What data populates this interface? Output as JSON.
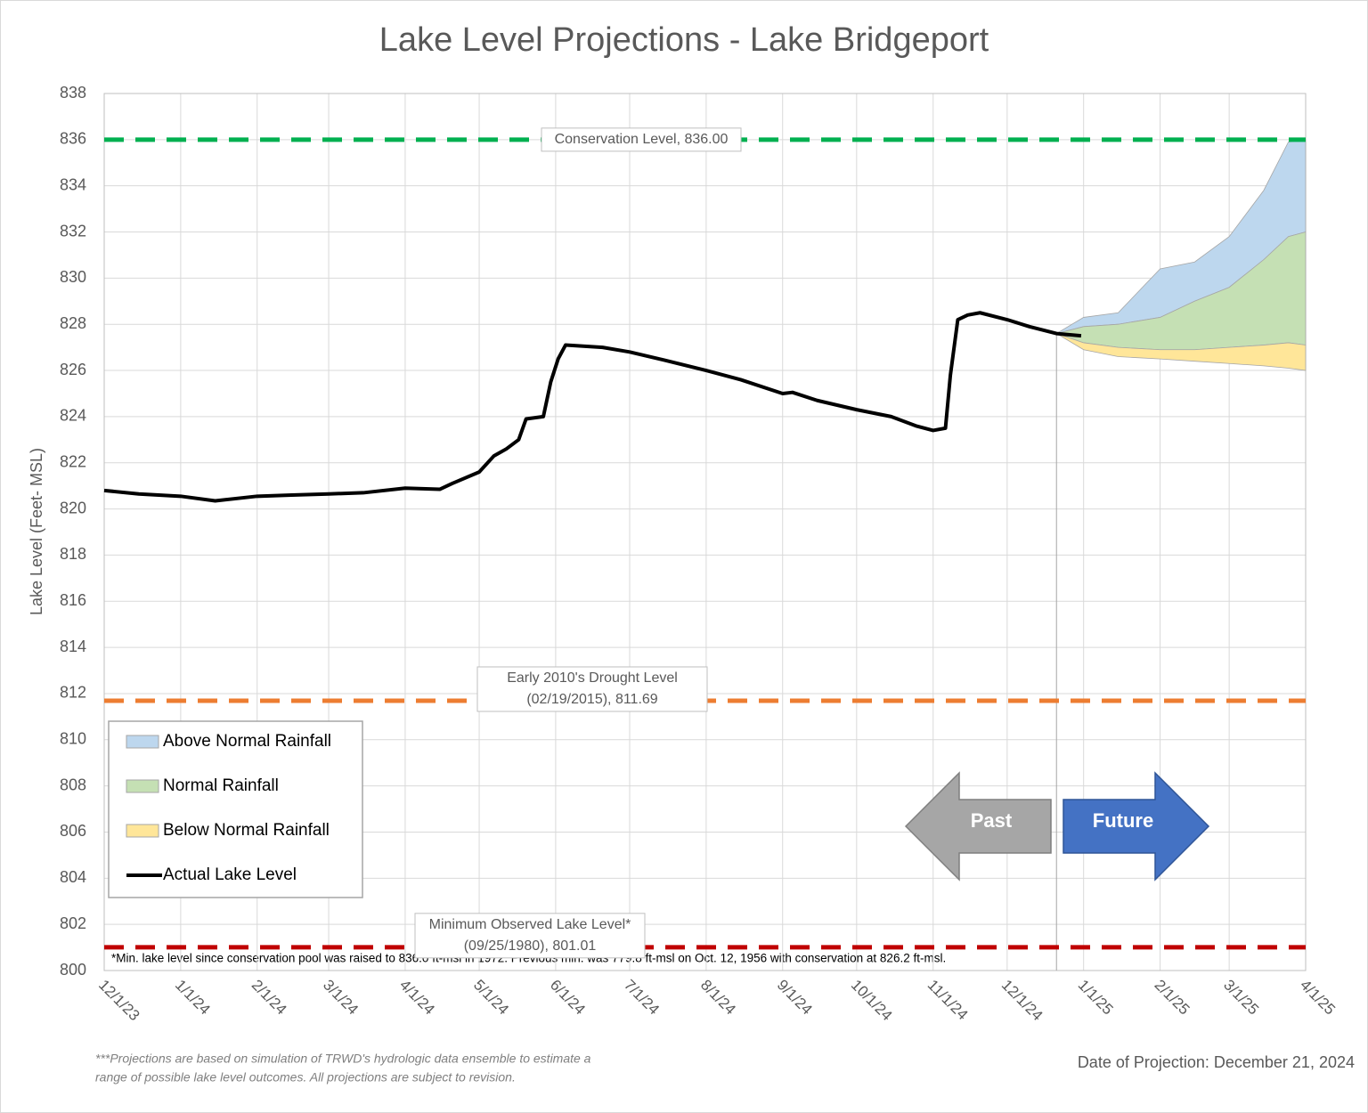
{
  "chart_data": {
    "type": "line",
    "title": "Lake Level Projections - Lake Bridgeport",
    "y_label": "Lake Level (Feet- MSL)",
    "ylim": [
      800,
      838
    ],
    "yticks": [
      800,
      802,
      804,
      806,
      808,
      810,
      812,
      814,
      816,
      818,
      820,
      822,
      824,
      826,
      828,
      830,
      832,
      834,
      836,
      838
    ],
    "xlim": [
      "2023-12-01",
      "2025-04-01"
    ],
    "xticks": [
      {
        "value": "2023-12-01",
        "label": "12/1/23"
      },
      {
        "value": "2024-01-01",
        "label": "1/1/24"
      },
      {
        "value": "2024-02-01",
        "label": "2/1/24"
      },
      {
        "value": "2024-03-01",
        "label": "3/1/24"
      },
      {
        "value": "2024-04-01",
        "label": "4/1/24"
      },
      {
        "value": "2024-05-01",
        "label": "5/1/24"
      },
      {
        "value": "2024-06-01",
        "label": "6/1/24"
      },
      {
        "value": "2024-07-01",
        "label": "7/1/24"
      },
      {
        "value": "2024-08-01",
        "label": "8/1/24"
      },
      {
        "value": "2024-09-01",
        "label": "9/1/24"
      },
      {
        "value": "2024-10-01",
        "label": "10/1/24"
      },
      {
        "value": "2024-11-01",
        "label": "11/1/24"
      },
      {
        "value": "2024-12-01",
        "label": "12/1/24"
      },
      {
        "value": "2025-01-01",
        "label": "1/1/25"
      },
      {
        "value": "2025-02-01",
        "label": "2/1/25"
      },
      {
        "value": "2025-03-01",
        "label": "3/1/25"
      },
      {
        "value": "2025-04-01",
        "label": "4/1/25"
      }
    ],
    "grid": true,
    "series": [
      {
        "name": "Actual Lake Level",
        "color": "#000000",
        "x": [
          "2023-12-01",
          "2023-12-15",
          "2024-01-01",
          "2024-01-15",
          "2024-02-01",
          "2024-02-15",
          "2024-03-01",
          "2024-03-15",
          "2024-04-01",
          "2024-04-15",
          "2024-04-20",
          "2024-05-01",
          "2024-05-07",
          "2024-05-12",
          "2024-05-17",
          "2024-05-20",
          "2024-05-27",
          "2024-05-30",
          "2024-06-02",
          "2024-06-05",
          "2024-06-20",
          "2024-07-01",
          "2024-07-15",
          "2024-08-01",
          "2024-08-15",
          "2024-09-01",
          "2024-09-05",
          "2024-09-15",
          "2024-10-01",
          "2024-10-15",
          "2024-10-25",
          "2024-11-01",
          "2024-11-06",
          "2024-11-08",
          "2024-11-11",
          "2024-11-15",
          "2024-11-20",
          "2024-12-01",
          "2024-12-10",
          "2024-12-21",
          "2024-12-31"
        ],
        "values": [
          820.8,
          820.65,
          820.55,
          820.35,
          820.55,
          820.6,
          820.65,
          820.7,
          820.9,
          820.85,
          821.1,
          821.6,
          822.3,
          822.6,
          823.0,
          823.9,
          824.0,
          825.5,
          826.5,
          827.1,
          827.0,
          826.8,
          826.45,
          826.0,
          825.6,
          825.0,
          825.05,
          824.7,
          824.3,
          824.0,
          823.6,
          823.4,
          823.5,
          825.8,
          828.2,
          828.4,
          828.5,
          828.2,
          827.9,
          827.6,
          827.5
        ]
      }
    ],
    "bands": [
      {
        "name": "Above Normal Rainfall",
        "color": "#bdd7ee",
        "x": [
          "2024-12-21",
          "2025-01-01",
          "2025-01-15",
          "2025-02-01",
          "2025-02-15",
          "2025-03-01",
          "2025-03-15",
          "2025-03-25",
          "2025-04-01"
        ],
        "low": [
          827.6,
          827.9,
          828.0,
          828.3,
          829.0,
          829.6,
          830.8,
          831.8,
          832.0
        ],
        "high": [
          827.6,
          828.3,
          828.5,
          830.4,
          830.7,
          831.8,
          833.8,
          835.9,
          836.0
        ]
      },
      {
        "name": "Normal Rainfall",
        "color": "#c5e0b4",
        "x": [
          "2024-12-21",
          "2025-01-01",
          "2025-01-15",
          "2025-02-01",
          "2025-02-15",
          "2025-03-01",
          "2025-03-15",
          "2025-03-25",
          "2025-04-01"
        ],
        "low": [
          827.6,
          827.2,
          827.0,
          826.9,
          826.9,
          827.0,
          827.1,
          827.2,
          827.1
        ],
        "high": [
          827.6,
          827.9,
          828.0,
          828.3,
          829.0,
          829.6,
          830.8,
          831.8,
          832.0
        ]
      },
      {
        "name": "Below Normal Rainfall",
        "color": "#ffe699",
        "x": [
          "2024-12-21",
          "2025-01-01",
          "2025-01-15",
          "2025-02-01",
          "2025-02-15",
          "2025-03-01",
          "2025-03-15",
          "2025-03-25",
          "2025-04-01"
        ],
        "low": [
          827.6,
          826.9,
          826.6,
          826.5,
          826.4,
          826.3,
          826.2,
          826.1,
          826.0
        ],
        "high": [
          827.6,
          827.2,
          827.0,
          826.9,
          826.9,
          827.0,
          827.1,
          827.2,
          827.1
        ]
      }
    ],
    "reference_lines": [
      {
        "value": 836.0,
        "color": "#00b050",
        "label": [
          "Conservation Level, 836.00"
        ]
      },
      {
        "value": 811.69,
        "color": "#ed7d31",
        "label": [
          "Early 2010's Drought Level",
          "(02/19/2015), 811.69"
        ]
      },
      {
        "value": 801.01,
        "color": "#c00000",
        "label": [
          "Minimum Observed Lake Level*",
          "(09/25/1980), 801.01"
        ]
      }
    ],
    "projection_date": "2024-12-21",
    "arrows": {
      "past": "Past",
      "future": "Future"
    },
    "plot_note": "*Min. lake level since conservation pool was raised to 836.0 ft-msl in 1972.  Previous min. was 779.8 ft-msl on Oct. 12, 1956 with conservation at 826.2 ft-msl.",
    "footnote": [
      "***Projections are based on simulation of TRWD's hydrologic data ensemble to estimate a",
      "range of possible lake level outcomes.  All projections are subject to revision."
    ],
    "projection_label": "Date of Projection: December 21, 2024"
  }
}
